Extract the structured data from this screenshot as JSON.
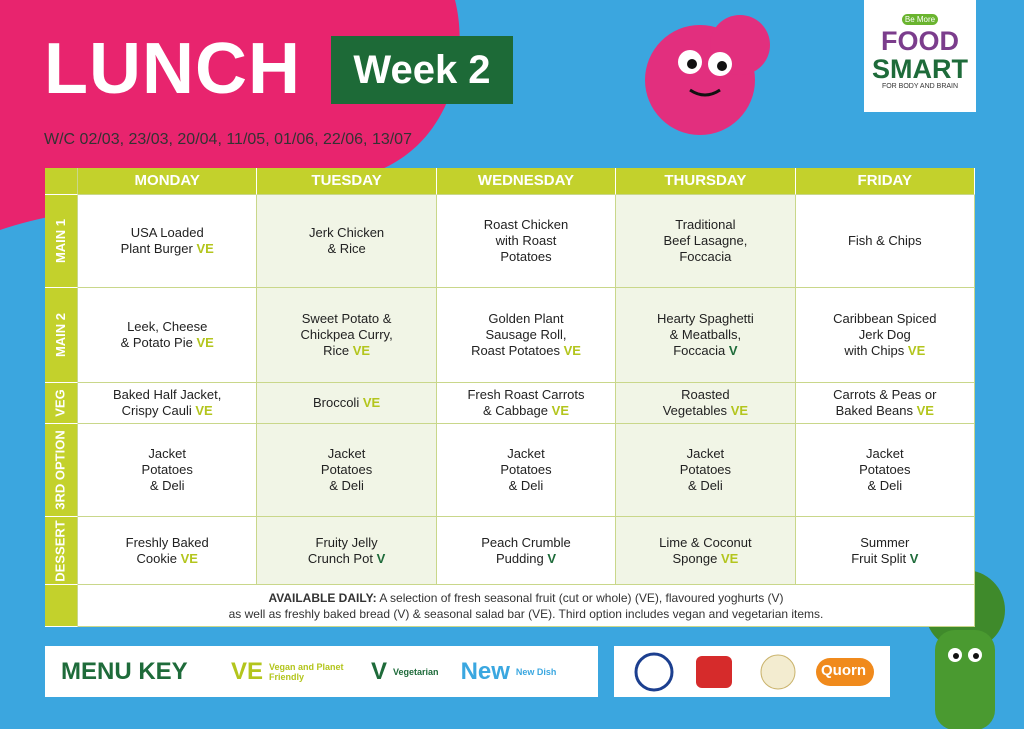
{
  "header": {
    "title": "LUNCH",
    "week": "Week 2",
    "dates": "W/C 02/03, 23/03, 20/04, 11/05, 01/06, 22/06, 13/07"
  },
  "logo": {
    "top": "Be More",
    "main": [
      "FOOD",
      "SMART"
    ],
    "tagline": "FOR BODY AND BRAIN"
  },
  "table": {
    "days": [
      "MONDAY",
      "TUESDAY",
      "WEDNESDAY",
      "THURSDAY",
      "FRIDAY"
    ],
    "rows": [
      {
        "label": "MAIN 1",
        "cells": [
          {
            "lines": [
              "USA Loaded",
              "Plant Burger"
            ],
            "tag": "VE"
          },
          {
            "lines": [
              "Jerk Chicken",
              "& Rice"
            ]
          },
          {
            "lines": [
              "Roast Chicken",
              "with Roast",
              "Potatoes"
            ]
          },
          {
            "lines": [
              "Traditional",
              "Beef Lasagne,",
              "Foccacia"
            ]
          },
          {
            "lines": [
              "Fish & Chips"
            ]
          }
        ]
      },
      {
        "label": "MAIN 2",
        "cells": [
          {
            "lines": [
              "Leek, Cheese",
              "& Potato Pie"
            ],
            "tag": "VE"
          },
          {
            "lines": [
              "Sweet Potato &",
              "Chickpea Curry,",
              "Rice"
            ],
            "tag": "VE"
          },
          {
            "lines": [
              "Golden Plant",
              "Sausage Roll,",
              "Roast Potatoes"
            ],
            "tag": "VE"
          },
          {
            "lines": [
              "Hearty Spaghetti",
              "& Meatballs,",
              "Foccacia"
            ],
            "tag": "V"
          },
          {
            "lines": [
              "Caribbean Spiced",
              "Jerk Dog",
              "with Chips"
            ],
            "tag": "VE"
          }
        ]
      },
      {
        "label": "VEG",
        "cells": [
          {
            "lines": [
              "Baked Half Jacket,",
              "Crispy Cauli"
            ],
            "tag": "VE"
          },
          {
            "lines": [
              "Broccoli"
            ],
            "tag": "VE"
          },
          {
            "lines": [
              "Fresh Roast Carrots",
              "& Cabbage"
            ],
            "tag": "VE"
          },
          {
            "lines": [
              "Roasted",
              "Vegetables"
            ],
            "tag": "VE"
          },
          {
            "lines": [
              "Carrots & Peas or",
              "Baked Beans"
            ],
            "tag": "VE"
          }
        ]
      },
      {
        "label": "3RD OPTION",
        "cells": [
          {
            "lines": [
              "Jacket",
              "Potatoes",
              "& Deli"
            ]
          },
          {
            "lines": [
              "Jacket",
              "Potatoes",
              "& Deli"
            ]
          },
          {
            "lines": [
              "Jacket",
              "Potatoes",
              "& Deli"
            ]
          },
          {
            "lines": [
              "Jacket",
              "Potatoes",
              "& Deli"
            ]
          },
          {
            "lines": [
              "Jacket",
              "Potatoes",
              "& Deli"
            ]
          }
        ]
      },
      {
        "label": "DESSERT",
        "cells": [
          {
            "lines": [
              "Freshly Baked",
              "Cookie"
            ],
            "tag": "VE"
          },
          {
            "lines": [
              "Fruity Jelly",
              "Crunch Pot"
            ],
            "tag": "V"
          },
          {
            "lines": [
              "Peach Crumble",
              "Pudding"
            ],
            "tag": "V"
          },
          {
            "lines": [
              "Lime & Coconut",
              "Sponge"
            ],
            "tag": "VE"
          },
          {
            "lines": [
              "Summer",
              "Fruit Split"
            ],
            "tag": "V"
          }
        ]
      }
    ],
    "available": {
      "lead": "AVAILABLE DAILY:",
      "lines": [
        "A selection of fresh seasonal fruit (cut or whole) (VE), flavoured yoghurts (V)",
        "as well as freshly baked bread (V) & seasonal salad bar (VE). Third option includes vegan and vegetarian items."
      ]
    }
  },
  "menu_key": {
    "title": "MENU KEY",
    "items": [
      {
        "symbol": "VE",
        "label": "Vegan and Planet Friendly",
        "color": "#b3c51d"
      },
      {
        "symbol": "V",
        "label": "Vegetarian",
        "color": "#1e6b3a"
      },
      {
        "symbol": "New",
        "label": "New Dish",
        "color": "#3aa7e0"
      }
    ]
  },
  "partners": {
    "quorn": "Quorn"
  }
}
